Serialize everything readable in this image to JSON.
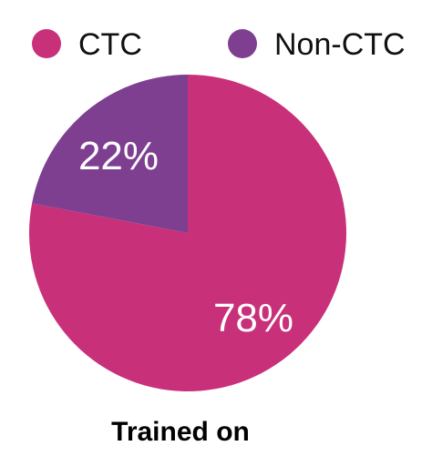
{
  "chart_data": {
    "type": "pie",
    "title": "Trained on",
    "legend_position": "top",
    "slices": [
      {
        "label": "CTC",
        "value": 78,
        "display": "78%",
        "color": "#c8307a"
      },
      {
        "label": "Non-CTC",
        "value": 22,
        "display": "22%",
        "color": "#7e3f91"
      }
    ]
  }
}
